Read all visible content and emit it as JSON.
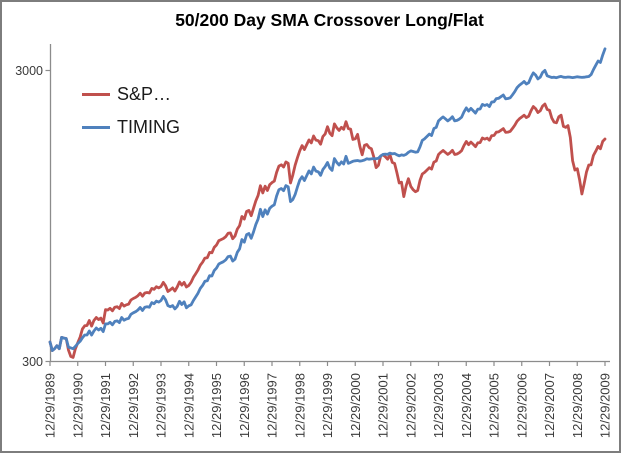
{
  "chart_data": {
    "type": "line",
    "title": "50/200 Day SMA Crossover Long/Flat",
    "x_frequency": "monthly",
    "x_start": "12/29/1989",
    "x_end": "12/29/2009",
    "x_tick_labels": [
      "12/29/1989",
      "12/29/1990",
      "12/29/1991",
      "12/29/1992",
      "12/29/1993",
      "12/29/1994",
      "12/29/1995",
      "12/29/1996",
      "12/29/1997",
      "12/29/1998",
      "12/29/1999",
      "12/29/2000",
      "12/29/2001",
      "12/29/2002",
      "12/29/2003",
      "12/29/2004",
      "12/29/2005",
      "12/29/2006",
      "12/29/2007",
      "12/29/2008",
      "12/29/2009"
    ],
    "y_axis": {
      "scale": "log",
      "min": 300,
      "max": 3700,
      "tick_values": [
        300,
        3000
      ],
      "tick_labels": [
        "300",
        "3000"
      ],
      "grid": false
    },
    "legend_position": "top-left-inside",
    "series": [
      {
        "name": "S&P…",
        "color": "#C0504D",
        "values": [
          350,
          327,
          332,
          340,
          332,
          363,
          361,
          360,
          328,
          312,
          310,
          332,
          348,
          364,
          388,
          398,
          399,
          415,
          397,
          415,
          425,
          418,
          423,
          407,
          452,
          451,
          457,
          448,
          461,
          463,
          456,
          475,
          465,
          470,
          472,
          488,
          494,
          498,
          505,
          515,
          503,
          516,
          518,
          516,
          535,
          531,
          542,
          537,
          543,
          561,
          546,
          522,
          529,
          537,
          524,
          541,
          563,
          549,
          561,
          541,
          548,
          562,
          584,
          601,
          619,
          643,
          658,
          680,
          682,
          711,
          709,
          740,
          754,
          780,
          787,
          794,
          806,
          827,
          830,
          793,
          810,
          855,
          879,
          945,
          926,
          984,
          992,
          951,
          1008,
          1069,
          1117,
          1206,
          1139,
          1201,
          1161,
          1215,
          1236,
          1250,
          1340,
          1408,
          1422,
          1398,
          1455,
          1440,
          1232,
          1311,
          1417,
          1503,
          1590,
          1656,
          1605,
          1669,
          1733,
          1692,
          1786,
          1730,
          1721,
          1674,
          1780,
          1816,
          1923,
          1826,
          1791,
          1966,
          1907,
          1868,
          1914,
          1884,
          2001,
          1895,
          1887,
          1739,
          1747,
          1809,
          1644,
          1540,
          1660,
          1671,
          1630,
          1614,
          1513,
          1391,
          1417,
          1526,
          1539,
          1517,
          1487,
          1543,
          1449,
          1438,
          1336,
          1232,
          1240,
          1106,
          1203,
          1274,
          1199,
          1168,
          1150,
          1161,
          1257,
          1323,
          1340,
          1364,
          1390,
          1375,
          1453,
          1466,
          1543,
          1571,
          1593,
          1569,
          1544,
          1565,
          1596,
          1543,
          1549,
          1566,
          1590,
          1654,
          1710,
          1668,
          1703,
          1673,
          1641,
          1693,
          1696,
          1759,
          1743,
          1757,
          1728,
          1793,
          1794,
          1841,
          1846,
          1869,
          1894,
          1839,
          1842,
          1853,
          1897,
          1946,
          2009,
          2047,
          2076,
          2107,
          2066,
          2089,
          2181,
          2257,
          2220,
          2151,
          2183,
          2265,
          2301,
          2205,
          2190,
          2059,
          1992,
          1983,
          2080,
          2107,
          1929,
          1912,
          1940,
          1767,
          1470,
          1364,
          1379,
          1263,
          1129,
          1227,
          1345,
          1420,
          1423,
          1531,
          1586,
          1645,
          1615,
          1712,
          1745
        ]
      },
      {
        "name": "TIMING",
        "color": "#4F81BD",
        "values": [
          350,
          327,
          332,
          340,
          332,
          363,
          361,
          360,
          336,
          334,
          332,
          338,
          346,
          352,
          362,
          370,
          370,
          382,
          370,
          382,
          391,
          385,
          390,
          380,
          404,
          404,
          409,
          401,
          412,
          414,
          408,
          425,
          416,
          420,
          422,
          436,
          441,
          445,
          451,
          460,
          449,
          461,
          463,
          461,
          478,
          474,
          484,
          480,
          486,
          502,
          489,
          467,
          463,
          467,
          455,
          464,
          483,
          471,
          481,
          459,
          466,
          470,
          486,
          500,
          515,
          535,
          548,
          566,
          568,
          592,
          590,
          616,
          628,
          649,
          655,
          661,
          671,
          688,
          691,
          664,
          674,
          712,
          732,
          787,
          771,
          819,
          826,
          795,
          836,
          886,
          926,
          1000,
          944,
          996,
          963,
          1008,
          1025,
          1037,
          1111,
          1168,
          1179,
          1159,
          1207,
          1194,
          1063,
          1080,
          1124,
          1192,
          1261,
          1295,
          1256,
          1305,
          1355,
          1324,
          1397,
          1353,
          1346,
          1309,
          1371,
          1404,
          1449,
          1387,
          1361,
          1494,
          1449,
          1420,
          1455,
          1432,
          1521,
          1440,
          1450,
          1463,
          1468,
          1472,
          1465,
          1470,
          1478,
          1492,
          1487,
          1490,
          1494,
          1492,
          1498,
          1525,
          1545,
          1548,
          1544,
          1560,
          1552,
          1556,
          1540,
          1528,
          1538,
          1532,
          1544,
          1570,
          1588,
          1580,
          1572,
          1576,
          1640,
          1726,
          1748,
          1780,
          1814,
          1794,
          1896,
          1913,
          2013,
          2049,
          2078,
          2047,
          2014,
          2042,
          2082,
          2013,
          2021,
          2043,
          2074,
          2158,
          2231,
          2176,
          2222,
          2183,
          2141,
          2209,
          2213,
          2295,
          2274,
          2292,
          2254,
          2339,
          2341,
          2402,
          2408,
          2439,
          2471,
          2399,
          2403,
          2417,
          2475,
          2539,
          2621,
          2670,
          2708,
          2749,
          2695,
          2725,
          2845,
          2944,
          2896,
          2806,
          2848,
          2955,
          3002,
          2877,
          2857,
          2839,
          2846,
          2834,
          2851,
          2863,
          2846,
          2841,
          2850,
          2844,
          2836,
          2846,
          2855,
          2848,
          2841,
          2846,
          2855,
          2862,
          2905,
          3018,
          3128,
          3235,
          3196,
          3388,
          3562
        ]
      }
    ]
  },
  "colors": {
    "series_sp": "#C0504D",
    "series_timing": "#4F81BD",
    "axis_line": "#8c8c8c",
    "tick_label": "#3a3a3a",
    "title_text": "#000000",
    "frame_border": "#7d7d7d",
    "background": "#ffffff"
  }
}
